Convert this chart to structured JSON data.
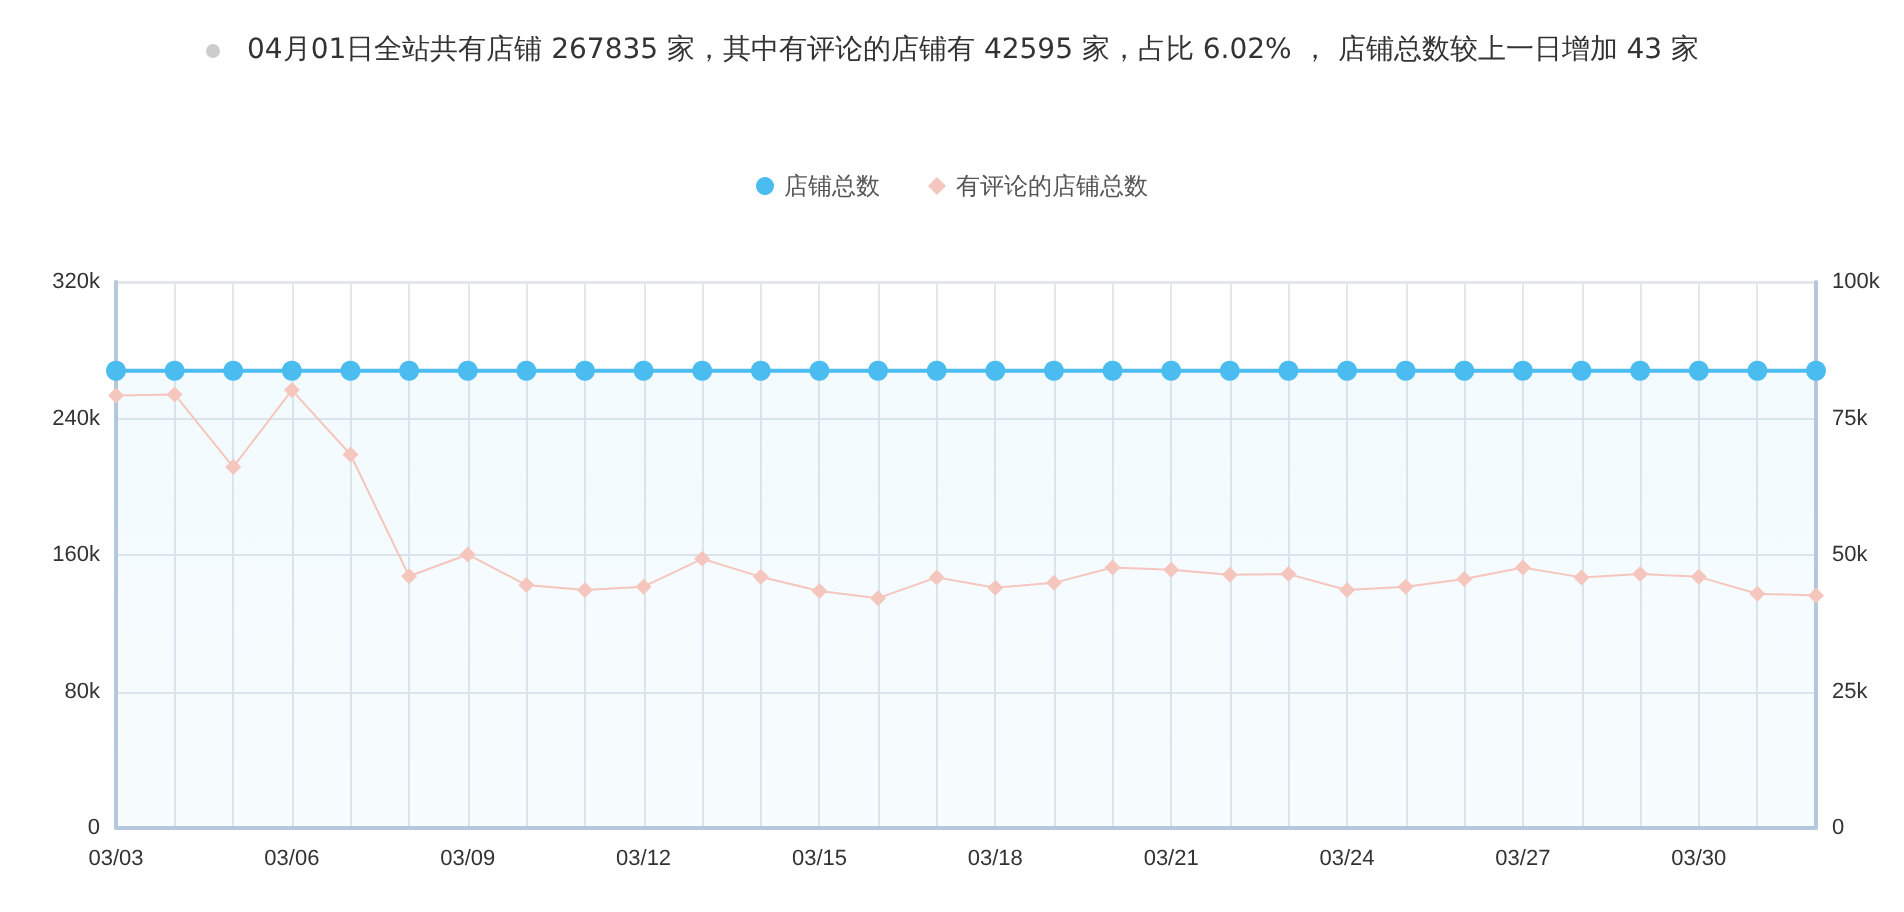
{
  "chart_data": {
    "type": "line",
    "title": "04月01日全站共有店铺 267835 家，其中有评论的店铺有 42595 家，占比 6.02% ， 店铺总数较上一日增加 43 家",
    "categories": [
      "03/03",
      null,
      null,
      "03/06",
      null,
      null,
      "03/09",
      null,
      null,
      "03/12",
      null,
      null,
      "03/15",
      null,
      null,
      "03/18",
      null,
      null,
      "03/21",
      null,
      null,
      "03/24",
      null,
      null,
      "03/27",
      null,
      null,
      "03/30",
      null,
      null
    ],
    "series": [
      {
        "name": "店铺总数",
        "type": "area",
        "color": "#4bbcf0",
        "marker": "circle",
        "values": [
          268000,
          268000,
          268000,
          268000,
          268000,
          268000,
          268000,
          268000,
          268000,
          268000,
          268000,
          268000,
          268000,
          268000,
          268000,
          268000,
          268000,
          268000,
          268000,
          268000,
          268000,
          268000,
          268000,
          268000,
          268000,
          268000,
          268000,
          268000,
          268000,
          268000
        ]
      },
      {
        "name": "有评论的店铺总数",
        "axis": "y2",
        "color": "#f5c6bd",
        "marker": "diamond",
        "values": [
          79200,
          79400,
          66100,
          80200,
          68400,
          46100,
          50100,
          44500,
          43600,
          44200,
          49300,
          46000,
          43400,
          42100,
          45900,
          44000,
          44900,
          47700,
          47300,
          46400,
          46500,
          43600,
          44200,
          45600,
          47700,
          45900,
          46500,
          46000,
          42900,
          42600
        ]
      }
    ],
    "ylim": [
      0,
      320000
    ],
    "yticks": [
      0,
      {
        "value": 80000,
        "label": "80k"
      },
      {
        "value": 160000,
        "label": "160k"
      },
      {
        "value": 240000,
        "label": "240k"
      },
      {
        "value": 320000,
        "label": "320k"
      }
    ],
    "y2lim": [
      0,
      100000
    ],
    "y2ticks": [
      0,
      {
        "value": 25000,
        "label": "25k"
      },
      {
        "value": 50000,
        "label": "50k"
      },
      {
        "value": 75000,
        "label": "75k"
      },
      {
        "value": 100000,
        "label": "100k"
      }
    ],
    "grid": true,
    "legend": "top"
  }
}
